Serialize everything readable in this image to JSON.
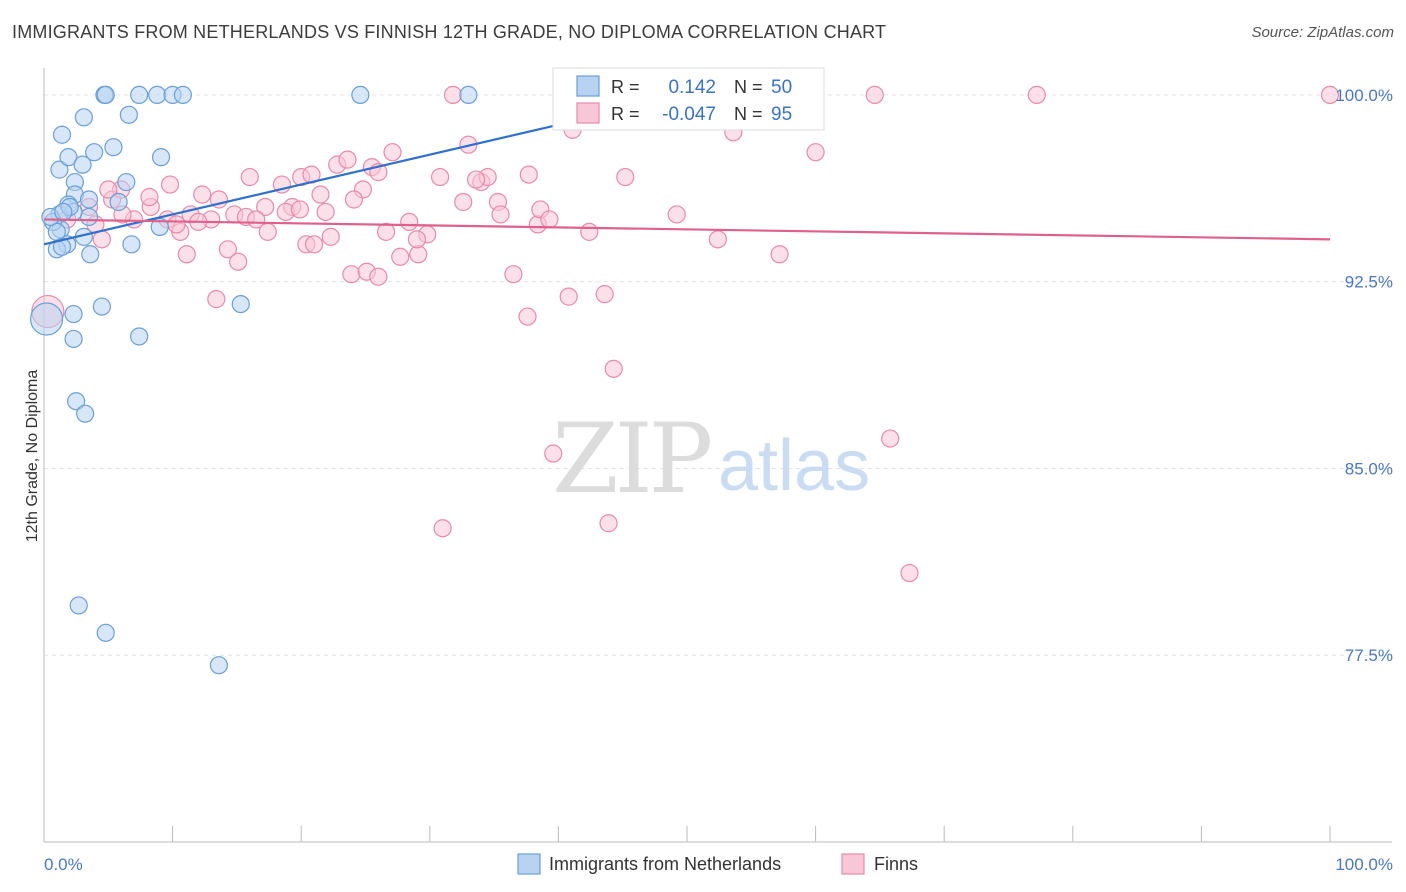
{
  "title": "IMMIGRANTS FROM NETHERLANDS VS FINNISH 12TH GRADE, NO DIPLOMA CORRELATION CHART",
  "source": "Source: ZipAtlas.com",
  "watermark": {
    "zip": "ZIP",
    "atlas": "atlas"
  },
  "legend": {
    "r_label": "R =",
    "n_label": "N =",
    "rows": [
      {
        "r": "0.142",
        "n": "50",
        "fill": "#b8d3f2",
        "stroke": "#6a9fd8"
      },
      {
        "r": "-0.047",
        "n": "95",
        "fill": "#f8c6d7",
        "stroke": "#e88aaa"
      }
    ]
  },
  "chart_data": {
    "type": "scatter",
    "title": "IMMIGRANTS FROM NETHERLANDS VS FINNISH 12TH GRADE, NO DIPLOMA CORRELATION CHART",
    "xlabel": "",
    "ylabel": "12th Grade, No Diploma",
    "xlim": [
      0,
      100
    ],
    "ylim": [
      70,
      101
    ],
    "x_tick_labels": [
      "0.0%",
      "100.0%"
    ],
    "y_ticks": [
      {
        "value": 100,
        "label": "100.0%"
      },
      {
        "value": 92.5,
        "label": "92.5%"
      },
      {
        "value": 85,
        "label": "85.0%"
      },
      {
        "value": 77.5,
        "label": "77.5%"
      }
    ],
    "grid": true,
    "legend_position": "bottom",
    "series": [
      {
        "name": "Immigrants from Netherlands",
        "color": "#6a9fd8",
        "fill": "#b8d3f2",
        "trend": {
          "x": [
            0,
            40
          ],
          "y": [
            94.0,
            98.8
          ],
          "color": "#2f6fcf"
        },
        "points": [
          [
            1.2,
            95.2
          ],
          [
            1.3,
            94.6
          ],
          [
            0.7,
            94.9
          ],
          [
            1.8,
            94.0
          ],
          [
            1.0,
            93.8
          ],
          [
            3.5,
            95.1
          ],
          [
            2.4,
            96.5
          ],
          [
            1.2,
            97.0
          ],
          [
            1.4,
            98.4
          ],
          [
            1.9,
            97.5
          ],
          [
            3.0,
            97.2
          ],
          [
            3.9,
            97.7
          ],
          [
            5.4,
            97.9
          ],
          [
            3.1,
            99.1
          ],
          [
            6.6,
            99.2
          ],
          [
            4.7,
            100.0
          ],
          [
            4.8,
            100.0
          ],
          [
            7.4,
            100.0
          ],
          [
            8.8,
            100.0
          ],
          [
            10.0,
            100.0
          ],
          [
            10.8,
            100.0
          ],
          [
            24.6,
            100.0
          ],
          [
            33.0,
            100.0
          ],
          [
            2.4,
            96.0
          ],
          [
            1.9,
            95.6
          ],
          [
            2.3,
            95.3
          ],
          [
            3.1,
            94.3
          ],
          [
            3.5,
            95.8
          ],
          [
            5.8,
            95.7
          ],
          [
            6.4,
            96.5
          ],
          [
            9.1,
            97.5
          ],
          [
            9.0,
            94.7
          ],
          [
            6.8,
            94.0
          ],
          [
            3.6,
            93.6
          ],
          [
            1.0,
            94.5
          ],
          [
            1.4,
            93.9
          ],
          [
            4.5,
            91.5
          ],
          [
            15.3,
            91.6
          ],
          [
            2.3,
            91.2
          ],
          [
            2.3,
            90.2
          ],
          [
            7.4,
            90.3
          ],
          [
            2.5,
            87.7
          ],
          [
            3.2,
            87.2
          ],
          [
            0.2,
            91.0
          ],
          [
            2.7,
            79.5
          ],
          [
            4.8,
            78.4
          ],
          [
            13.6,
            77.1
          ],
          [
            0.5,
            95.1
          ],
          [
            2.0,
            95.5
          ],
          [
            1.5,
            95.3
          ]
        ]
      },
      {
        "name": "Finns",
        "color": "#e88aaa",
        "fill": "#f8c6d7",
        "trend": {
          "x": [
            0,
            100
          ],
          "y": [
            95.0,
            94.2
          ],
          "color": "#e0608c"
        },
        "points": [
          [
            0.3,
            91.3
          ],
          [
            1.8,
            95.0
          ],
          [
            3.5,
            95.5
          ],
          [
            4.0,
            94.8
          ],
          [
            4.5,
            94.2
          ],
          [
            5.3,
            95.8
          ],
          [
            6.0,
            96.2
          ],
          [
            7.0,
            95.0
          ],
          [
            8.3,
            95.5
          ],
          [
            9.6,
            95.0
          ],
          [
            9.8,
            96.4
          ],
          [
            10.6,
            94.5
          ],
          [
            11.4,
            95.2
          ],
          [
            12.3,
            96.0
          ],
          [
            13.0,
            95.0
          ],
          [
            13.6,
            95.8
          ],
          [
            11.1,
            93.6
          ],
          [
            13.4,
            91.8
          ],
          [
            14.3,
            93.8
          ],
          [
            15.1,
            93.3
          ],
          [
            14.8,
            95.2
          ],
          [
            16.0,
            96.7
          ],
          [
            17.2,
            95.5
          ],
          [
            17.4,
            94.5
          ],
          [
            18.5,
            96.4
          ],
          [
            19.3,
            95.5
          ],
          [
            20.0,
            96.7
          ],
          [
            20.4,
            94.0
          ],
          [
            21.0,
            94.0
          ],
          [
            21.5,
            96.0
          ],
          [
            21.9,
            95.3
          ],
          [
            22.8,
            97.2
          ],
          [
            23.6,
            97.4
          ],
          [
            23.9,
            92.8
          ],
          [
            24.8,
            96.2
          ],
          [
            25.5,
            97.1
          ],
          [
            26.0,
            96.9
          ],
          [
            26.6,
            94.5
          ],
          [
            27.1,
            97.7
          ],
          [
            27.7,
            93.5
          ],
          [
            28.4,
            94.9
          ],
          [
            29.1,
            93.6
          ],
          [
            29.8,
            94.4
          ],
          [
            20.8,
            96.8
          ],
          [
            25.1,
            92.9
          ],
          [
            26.0,
            92.7
          ],
          [
            30.8,
            96.7
          ],
          [
            31.8,
            100.0
          ],
          [
            32.6,
            95.7
          ],
          [
            33.0,
            98.0
          ],
          [
            34.0,
            96.5
          ],
          [
            34.5,
            96.7
          ],
          [
            35.3,
            95.7
          ],
          [
            35.5,
            95.2
          ],
          [
            36.5,
            92.8
          ],
          [
            37.7,
            96.8
          ],
          [
            38.4,
            94.8
          ],
          [
            38.6,
            95.4
          ],
          [
            39.3,
            95.0
          ],
          [
            39.6,
            85.6
          ],
          [
            40.8,
            91.9
          ],
          [
            41.1,
            98.6
          ],
          [
            42.0,
            100.0
          ],
          [
            42.4,
            94.5
          ],
          [
            43.6,
            92.0
          ],
          [
            43.9,
            82.8
          ],
          [
            44.3,
            89.0
          ],
          [
            45.2,
            96.7
          ],
          [
            49.2,
            95.2
          ],
          [
            52.4,
            94.2
          ],
          [
            53.6,
            98.5
          ],
          [
            55.4,
            100.0
          ],
          [
            57.2,
            93.6
          ],
          [
            57.8,
            100.0
          ],
          [
            60.0,
            97.7
          ],
          [
            64.6,
            100.0
          ],
          [
            65.8,
            86.2
          ],
          [
            67.3,
            80.8
          ],
          [
            77.2,
            100.0
          ],
          [
            100.0,
            100.0
          ],
          [
            31.0,
            82.6
          ],
          [
            37.6,
            91.1
          ],
          [
            12.0,
            94.9
          ],
          [
            15.7,
            95.1
          ],
          [
            18.8,
            95.3
          ],
          [
            22.3,
            94.3
          ],
          [
            10.3,
            94.8
          ],
          [
            8.2,
            95.9
          ],
          [
            6.1,
            95.2
          ],
          [
            5.0,
            96.2
          ],
          [
            16.5,
            95.0
          ],
          [
            19.9,
            95.4
          ],
          [
            24.1,
            95.8
          ],
          [
            29.0,
            94.2
          ],
          [
            33.6,
            96.6
          ]
        ]
      }
    ]
  }
}
